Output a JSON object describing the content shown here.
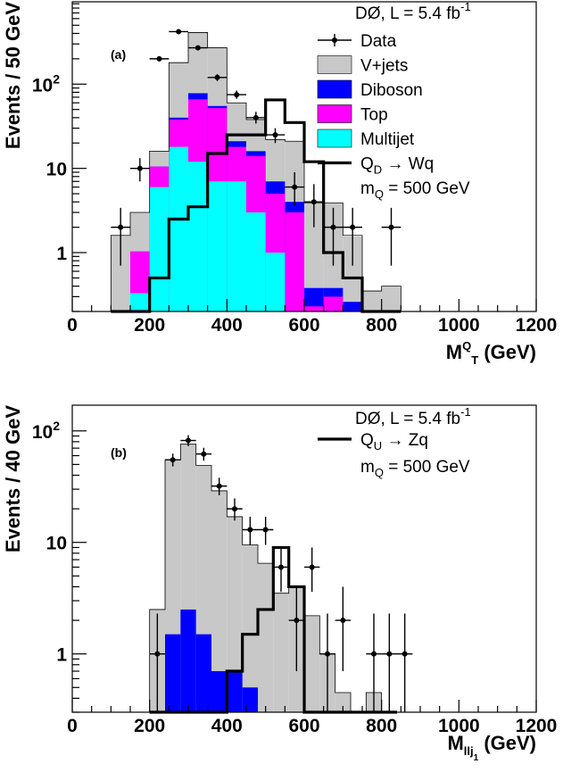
{
  "chart_data": [
    {
      "type": "bar",
      "panel_label": "(a)",
      "title_text": "DØ, L = 5.4 fb",
      "title_sup": "-1",
      "ylabel": "Events / 50 GeV",
      "xlabel_main": "M",
      "xlabel_sup": "Q",
      "xlabel_sub": "T",
      "xlabel_unit": " (GeV)",
      "y_scale": "log",
      "xlim": [
        0,
        1200
      ],
      "ylim": [
        0.2,
        950
      ],
      "x_ticks": [
        0,
        200,
        400,
        600,
        800,
        1000,
        1200
      ],
      "y_ticks": [
        {
          "value": 1,
          "label": "1"
        },
        {
          "value": 10,
          "label": "10"
        },
        {
          "value": 100,
          "label": "10",
          "sup": "2"
        }
      ],
      "bin_edges": [
        100,
        150,
        200,
        250,
        300,
        350,
        400,
        450,
        500,
        550,
        600,
        650,
        700,
        750,
        800,
        850
      ],
      "stack": [
        {
          "name": "Multijet",
          "color": "#00ffff",
          "values": [
            0,
            0.33,
            6,
            18,
            12,
            7,
            7,
            3,
            1,
            0,
            0,
            0,
            0,
            0,
            0
          ]
        },
        {
          "name": "Top",
          "color": "#ff00ff",
          "values": [
            0,
            0.7,
            4.5,
            20,
            54,
            45,
            11,
            11,
            4,
            3,
            0.23,
            0.3,
            0.16,
            0,
            0
          ]
        },
        {
          "name": "Diboson",
          "color": "#0000ff",
          "values": [
            0,
            0,
            0,
            2,
            12,
            3,
            3,
            2,
            2,
            1,
            0.15,
            0.08,
            0.1,
            0,
            0
          ]
        },
        {
          "name": "V+jets",
          "color": "#c8c8c8",
          "values": [
            1.6,
            1.97,
            5.5,
            140,
            332,
            215,
            39,
            22,
            15,
            17,
            3.5,
            3.5,
            1.3,
            0.35,
            0.4
          ]
        }
      ],
      "total_histogram": [
        1.6,
        3.0,
        16,
        180,
        410,
        270,
        60,
        38,
        22,
        21,
        3.9,
        3.9,
        1.6,
        0.35,
        0.4
      ],
      "signal": {
        "name_main": "Q",
        "name_sub": "D",
        "name_rest": " → Wq",
        "mass_main": "m",
        "mass_sub": "Q",
        "mass_rest": " = 500 GeV",
        "values": [
          0,
          0,
          0.5,
          2.5,
          3.5,
          15,
          25,
          25,
          65,
          35,
          12,
          1,
          0.5,
          0,
          0
        ]
      },
      "data_label": "Data",
      "data_points": [
        {
          "x": 125,
          "y": 2,
          "err": [
            1.3,
            1.4
          ]
        },
        {
          "x": 175,
          "y": 10,
          "err": [
            3,
            3.2
          ]
        },
        {
          "x": 225,
          "y": 200,
          "err": [
            14,
            14
          ]
        },
        {
          "x": 275,
          "y": 420,
          "err": [
            20,
            20
          ]
        },
        {
          "x": 325,
          "y": 270,
          "err": [
            16,
            17
          ]
        },
        {
          "x": 375,
          "y": 120,
          "err": [
            11,
            11
          ]
        },
        {
          "x": 425,
          "y": 75,
          "err": [
            8,
            9
          ]
        },
        {
          "x": 475,
          "y": 40,
          "err": [
            6,
            7
          ]
        },
        {
          "x": 525,
          "y": 25,
          "err": [
            5,
            5
          ]
        },
        {
          "x": 575,
          "y": 6,
          "err": [
            2.4,
            3
          ]
        },
        {
          "x": 625,
          "y": 4,
          "err": [
            2,
            2.5
          ]
        },
        {
          "x": 675,
          "y": 2,
          "err": [
            1.3,
            1.4
          ]
        },
        {
          "x": 725,
          "y": 2,
          "err": [
            1.3,
            1.4
          ]
        },
        {
          "x": 825,
          "y": 2,
          "err": [
            1.3,
            1.4
          ]
        }
      ],
      "legend": [
        {
          "kind": "data",
          "label": "Data"
        },
        {
          "kind": "fill",
          "color": "#c8c8c8",
          "label": "V+jets"
        },
        {
          "kind": "fill",
          "color": "#0000ff",
          "label": "Diboson"
        },
        {
          "kind": "fill",
          "color": "#ff00ff",
          "label": "Top"
        },
        {
          "kind": "fill",
          "color": "#00ffff",
          "label": "Multijet"
        }
      ]
    },
    {
      "type": "bar",
      "panel_label": "(b)",
      "title_text": "DØ, L = 5.4 fb",
      "title_sup": "-1",
      "ylabel": "Events / 40 GeV",
      "xlabel_main": "M",
      "xlabel_sub": "llj",
      "xlabel_subsub": "1",
      "xlabel_unit": " (GeV)",
      "y_scale": "log",
      "xlim": [
        0,
        1200
      ],
      "ylim": [
        0.3,
        170
      ],
      "x_ticks": [
        0,
        200,
        400,
        600,
        800,
        1000,
        1200
      ],
      "y_ticks": [
        {
          "value": 1,
          "label": "1"
        },
        {
          "value": 10,
          "label": "10"
        },
        {
          "value": 100,
          "label": "10",
          "sup": "2"
        }
      ],
      "bin_edges": [
        200,
        240,
        280,
        320,
        360,
        400,
        440,
        480,
        520,
        560,
        600,
        640,
        680,
        720,
        760,
        800,
        840
      ],
      "stack": [
        {
          "name": "Diboson",
          "color": "#0000ff",
          "values": [
            0,
            1.5,
            2.5,
            1.5,
            0.7,
            0.7,
            0.5,
            0,
            0,
            0,
            0,
            0,
            0,
            0,
            0,
            0
          ]
        },
        {
          "name": "V+jets",
          "color": "#c8c8c8",
          "values": [
            2.5,
            53.5,
            73.5,
            47.5,
            28.3,
            16.3,
            9,
            6.5,
            3.5,
            4,
            2.2,
            1,
            0.45,
            0,
            0.45,
            0
          ]
        }
      ],
      "total_histogram": [
        2.5,
        55,
        76,
        49,
        29,
        17,
        9.5,
        6.5,
        3.5,
        4,
        2.2,
        1,
        0.45,
        0,
        0.45,
        0
      ],
      "signal": {
        "name_main": "Q",
        "name_sub": "U",
        "name_rest": " → Zq",
        "mass_main": "m",
        "mass_sub": "Q",
        "mass_rest": " = 500 GeV",
        "values": [
          0,
          0,
          0,
          0,
          0.3,
          0.7,
          1.5,
          2.5,
          9,
          4,
          0.3,
          0,
          0,
          0,
          0,
          0
        ]
      },
      "data_points": [
        {
          "x": 220,
          "y": 1,
          "err": [
            0.7,
            1.3
          ]
        },
        {
          "x": 260,
          "y": 55,
          "err": [
            7,
            7.5
          ]
        },
        {
          "x": 300,
          "y": 82,
          "err": [
            9,
            9.5
          ]
        },
        {
          "x": 340,
          "y": 62,
          "err": [
            8,
            8.5
          ]
        },
        {
          "x": 380,
          "y": 32,
          "err": [
            5.5,
            6
          ]
        },
        {
          "x": 420,
          "y": 20,
          "err": [
            4.3,
            4.8
          ]
        },
        {
          "x": 460,
          "y": 13,
          "err": [
            3.5,
            4
          ]
        },
        {
          "x": 500,
          "y": 13,
          "err": [
            3.5,
            4
          ]
        },
        {
          "x": 540,
          "y": 6,
          "err": [
            2.4,
            3
          ]
        },
        {
          "x": 580,
          "y": 2,
          "err": [
            1.3,
            2
          ]
        },
        {
          "x": 620,
          "y": 6,
          "err": [
            2.4,
            3
          ]
        },
        {
          "x": 660,
          "y": 1,
          "err": [
            0.7,
            1.3
          ]
        },
        {
          "x": 700,
          "y": 2,
          "err": [
            1.3,
            2
          ]
        },
        {
          "x": 780,
          "y": 1,
          "err": [
            0.7,
            1.3
          ]
        },
        {
          "x": 820,
          "y": 1,
          "err": [
            0.7,
            1.3
          ]
        },
        {
          "x": 860,
          "y": 1,
          "err": [
            0.7,
            1.3
          ]
        }
      ],
      "legend": []
    }
  ]
}
